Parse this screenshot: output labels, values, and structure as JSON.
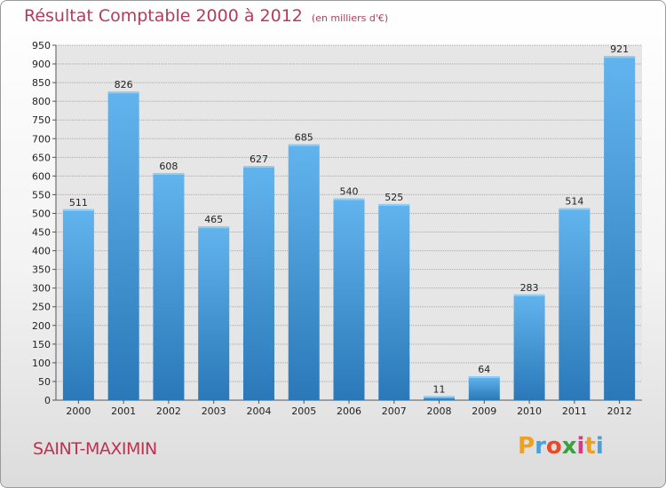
{
  "title": "Résultat Comptable 2000 à 2012",
  "unit_note": "(en milliers d'€)",
  "city": "SAINT-MAXIMIN",
  "logo": {
    "letters": [
      "P",
      "r",
      "o",
      "x",
      "i",
      "t",
      "i"
    ],
    "colors": [
      "#f0a020",
      "#4aa0d8",
      "#e84a2a",
      "#3aa040",
      "#d83a8a",
      "#f0a020",
      "#4aa0d8"
    ]
  },
  "colors": {
    "bar_top": "#62b4ee",
    "bar_bottom": "#2a78b8",
    "title": "#b43c5a",
    "city": "#c0304f"
  },
  "chart_data": {
    "type": "bar",
    "title": "Résultat Comptable 2000 à 2012",
    "subtitle": "(en milliers d'€)",
    "categories": [
      "2000",
      "2001",
      "2002",
      "2003",
      "2004",
      "2005",
      "2006",
      "2007",
      "2008",
      "2009",
      "2010",
      "2011",
      "2012"
    ],
    "values": [
      511,
      826,
      608,
      465,
      627,
      685,
      540,
      525,
      11,
      64,
      283,
      514,
      921
    ],
    "value_labels": [
      "511",
      "826",
      "608",
      "465",
      "627",
      "685",
      "540",
      "525",
      "11",
      "64",
      "283",
      "514",
      "921"
    ],
    "ylim": [
      0,
      950
    ],
    "yticks": [
      0,
      50,
      100,
      150,
      200,
      250,
      300,
      350,
      400,
      450,
      500,
      550,
      600,
      650,
      700,
      750,
      800,
      850,
      900,
      950
    ],
    "grid": true,
    "xlabel": "",
    "ylabel": ""
  }
}
